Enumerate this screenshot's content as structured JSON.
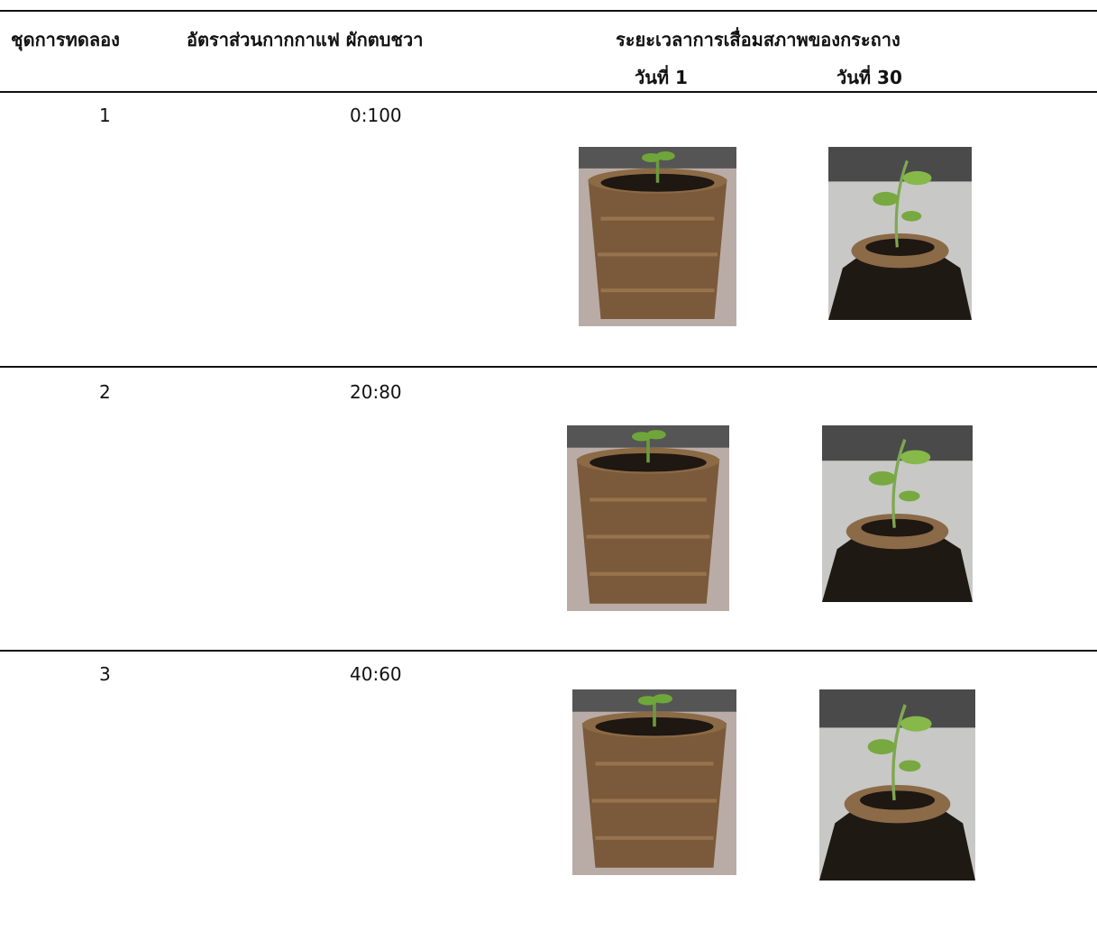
{
  "header": {
    "set": "ชุดการทดลอง",
    "ratio": "อัตราส่วนกากกาแฟ ผักตบชวา",
    "period": "ระยะเวลาการเสื่อมสภาพของกระถาง",
    "day1": "วันที่ 1",
    "day30": "วันที่ 30"
  },
  "rows": [
    {
      "set": "1",
      "ratio": "0:100"
    },
    {
      "set": "2",
      "ratio": "20:80"
    },
    {
      "set": "3",
      "ratio": "40:60"
    }
  ]
}
